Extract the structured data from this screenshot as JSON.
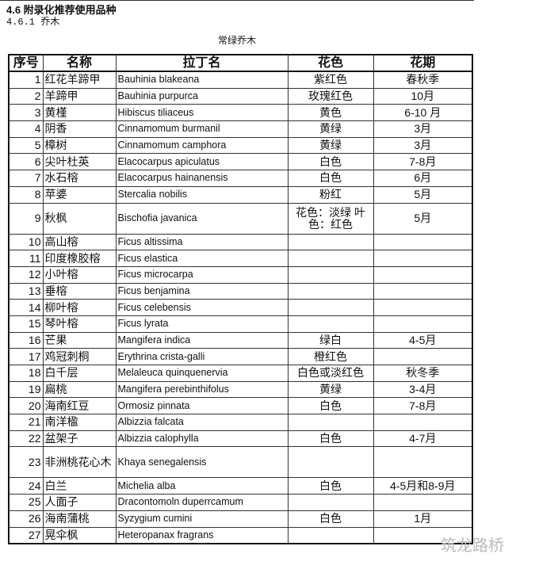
{
  "heading": "4.6 附录化推荐使用品种",
  "subheading": "4.6.1 乔木",
  "caption": "常绿乔木",
  "columns": [
    "序号",
    "名称",
    "拉丁名",
    "花色",
    "花期"
  ],
  "rows": [
    [
      "1",
      "红花羊蹄甲",
      "Bauhinia blakeana",
      "紫红色",
      "春秋季"
    ],
    [
      "2",
      "羊蹄甲",
      "Bauhinia purpurca",
      "玫瑰红色",
      "10月"
    ],
    [
      "3",
      "黄槿",
      "Hibiscus tiliaceus",
      "黄色",
      "6-10 月"
    ],
    [
      "4",
      "阴香",
      "Cinnamomum burmanil",
      "黄绿",
      "3月"
    ],
    [
      "5",
      "樟树",
      "Cinnamomum camphora",
      "黄绿",
      "3月"
    ],
    [
      "6",
      "尖叶杜英",
      "Elacocarpus apiculatus",
      "白色",
      "7-8月"
    ],
    [
      "7",
      "水石榕",
      "Elacocarpus hainanensis",
      "白色",
      "6月"
    ],
    [
      "8",
      "苹婆",
      "Stercalia nobilis",
      "粉红",
      "5月"
    ],
    [
      "9",
      "秋枫",
      "Bischofia javanica",
      "花色：淡绿 叶色：红色",
      "5月"
    ],
    [
      "10",
      "高山榕",
      "Ficus altissima",
      "",
      ""
    ],
    [
      "11",
      "印度橡胶榕",
      "Ficus elastica",
      "",
      ""
    ],
    [
      "12",
      "小叶榕",
      "Ficus microcarpa",
      "",
      ""
    ],
    [
      "13",
      "垂榕",
      "Ficus benjamina",
      "",
      ""
    ],
    [
      "14",
      "柳叶榕",
      "Ficus celebensis",
      "",
      ""
    ],
    [
      "15",
      "琴叶榕",
      "Ficus lyrata",
      "",
      ""
    ],
    [
      "16",
      "芒果",
      "Mangifera indica",
      "绿白",
      "4-5月"
    ],
    [
      "17",
      "鸡冠刺桐",
      "Erythrina crista-galli",
      "橙红色",
      ""
    ],
    [
      "18",
      "白千层",
      "Melaleuca quinquenervia",
      "白色或淡红色",
      "秋冬季"
    ],
    [
      "19",
      "扁桃",
      "Mangifera perebinthifolus",
      "黄绿",
      "3-4月"
    ],
    [
      "20",
      "海南红豆",
      "Ormosiz pinnata",
      "白色",
      "7-8月"
    ],
    [
      "21",
      "南洋楹",
      "Albizzia falcata",
      "",
      ""
    ],
    [
      "22",
      "盆架子",
      "Albizzia calophylla",
      "白色",
      "4-7月"
    ],
    [
      "23",
      "非洲桃花心木",
      "Khaya senegalensis",
      "",
      ""
    ],
    [
      "24",
      "白兰",
      "Michelia alba",
      "白色",
      "4-5月和8-9月"
    ],
    [
      "25",
      "人面子",
      "Dracontomoln duperrcamum",
      "",
      ""
    ],
    [
      "26",
      "海南蒲桃",
      "Syzygium cumini",
      "白色",
      "1月"
    ],
    [
      "27",
      "晃伞枫",
      "Heteropanax fragrans",
      "",
      ""
    ]
  ],
  "watermark": "筑龙路桥"
}
